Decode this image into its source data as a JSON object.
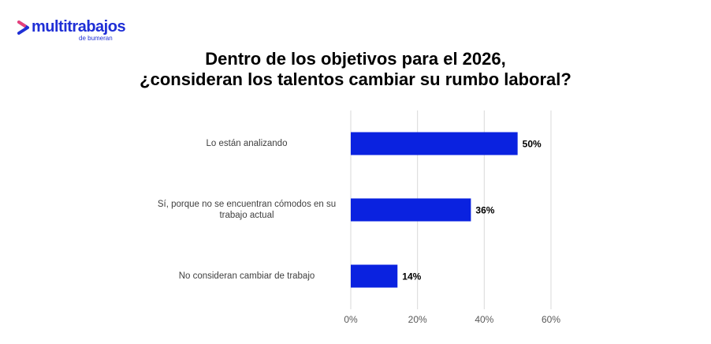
{
  "logo": {
    "brand": "multitrabajos",
    "tagline": "de bumeran",
    "color": "#1f2fd6"
  },
  "chart_data": {
    "type": "bar",
    "orientation": "horizontal",
    "title_lines": [
      "Dentro de los objetivos para el 2026,",
      "¿consideran los talentos cambiar su rumbo laboral?"
    ],
    "categories": [
      "Lo están analizando",
      "Sí, porque no se encuentran cómodos en su trabajo actual",
      "No consideran cambiar de trabajo"
    ],
    "values": [
      50,
      36,
      14
    ],
    "data_labels": [
      "50%",
      "36%",
      "14%"
    ],
    "xlim": [
      0,
      60
    ],
    "xticks": [
      0,
      20,
      40,
      60
    ],
    "xtick_labels": [
      "0%",
      "20%",
      "40%",
      "60%"
    ],
    "bar_color": "#0a22e0",
    "grid": true
  }
}
